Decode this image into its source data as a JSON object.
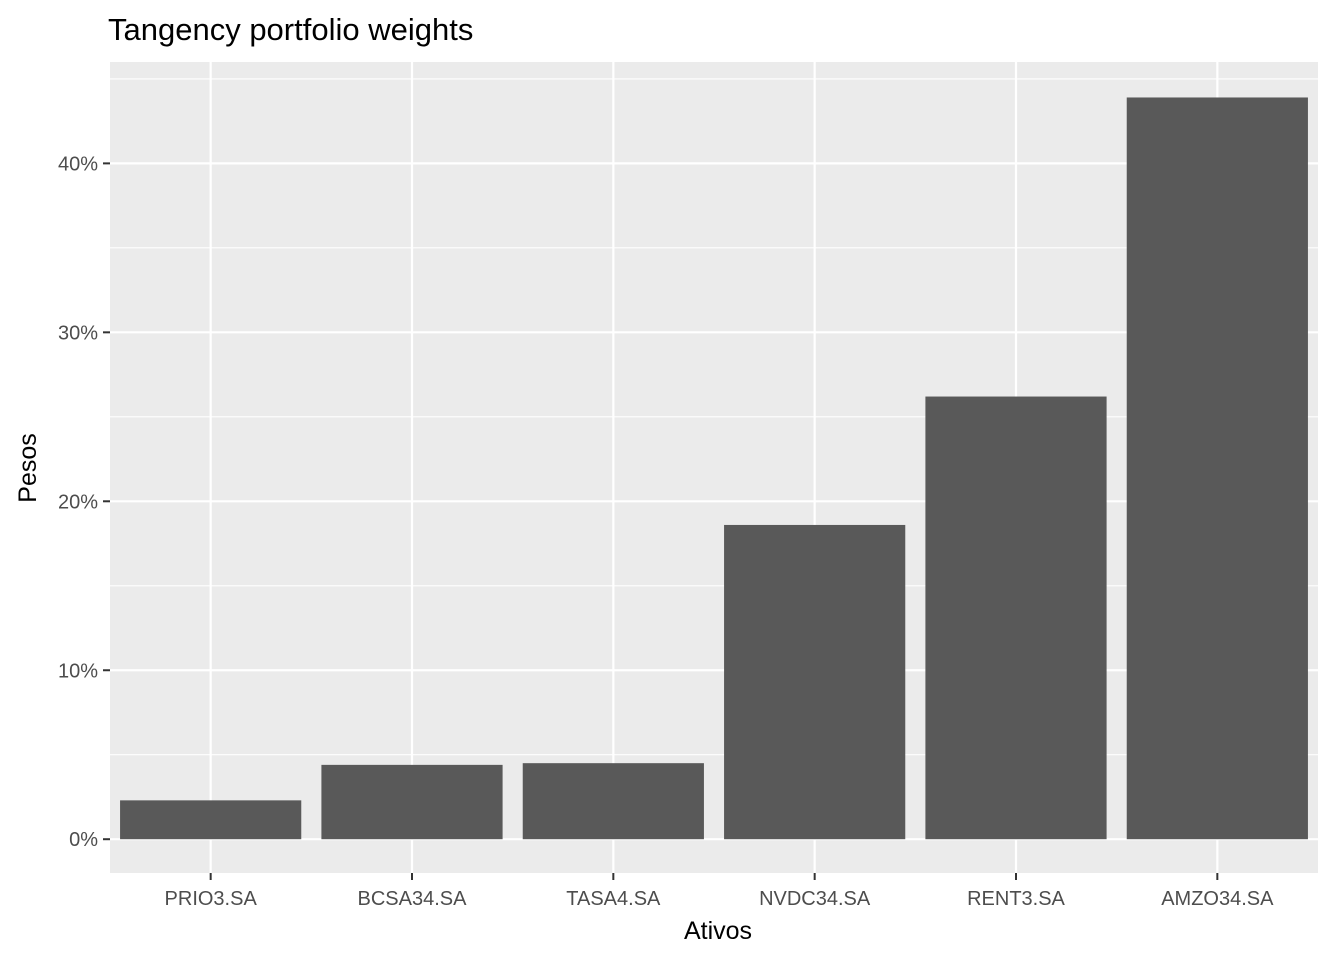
{
  "chart_data": {
    "type": "bar",
    "title": "Tangency portfolio weights",
    "xlabel": "Ativos",
    "ylabel": "Pesos",
    "categories": [
      "PRIO3.SA",
      "BCSA34.SA",
      "TASA4.SA",
      "NVDC34.SA",
      "RENT3.SA",
      "AMZO34.SA"
    ],
    "values": [
      0.023,
      0.044,
      0.045,
      0.186,
      0.262,
      0.439
    ],
    "y_ticks": [
      0,
      0.1,
      0.2,
      0.3,
      0.4
    ],
    "y_tick_labels": [
      "0%",
      "10%",
      "20%",
      "30%",
      "40%"
    ],
    "ylim": [
      -0.02,
      0.46
    ],
    "grid": true,
    "colors": {
      "bar": "#595959",
      "panel": "#ebebeb",
      "grid": "#ffffff"
    }
  }
}
